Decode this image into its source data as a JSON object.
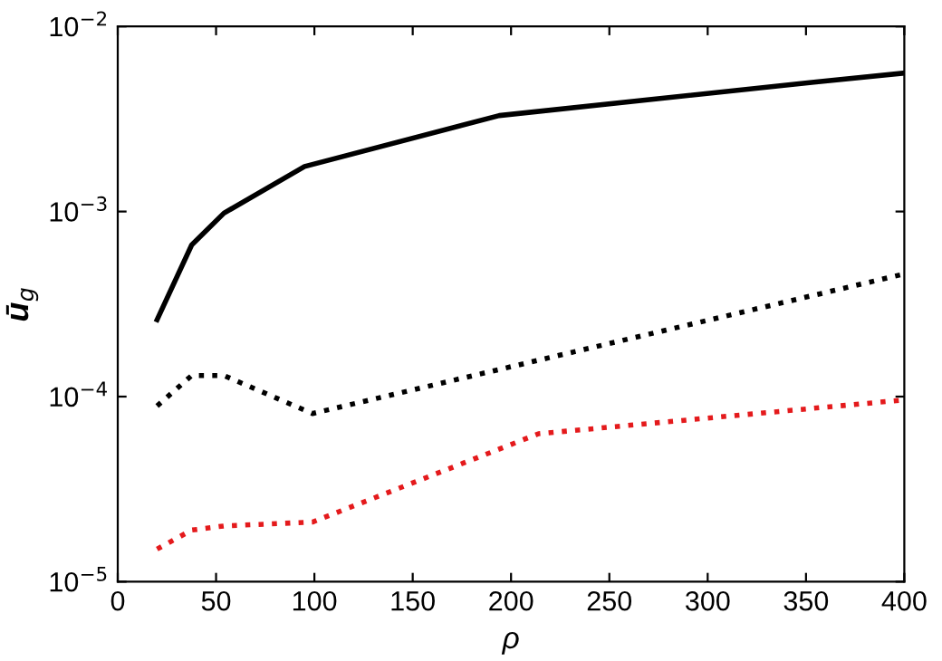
{
  "chart_data": {
    "type": "line",
    "xlabel": "ρ",
    "ylabel": "ū$_{g}$",
    "log": "y",
    "xlim": [
      0,
      400
    ],
    "xticks": [
      0,
      50,
      100,
      150,
      200,
      250,
      300,
      350,
      400
    ],
    "ylim": [
      1e-05,
      0.01
    ],
    "yticks": [
      {
        "value": 1e-05,
        "label": "10$^{−5}$"
      },
      {
        "value": 0.0001,
        "label": "10$^{−4}$"
      },
      {
        "value": 0.001,
        "label": "10$^{−3}$"
      },
      {
        "value": 0.01,
        "label": "10$^{−2}$"
      }
    ],
    "grid": false,
    "legend": false,
    "series": [
      {
        "color": "#000000",
        "line_style": "solid",
        "x": [
          20,
          37.6,
          54,
          95,
          194,
          354,
          400
        ],
        "values": [
          0.00026,
          0.00066,
          0.00098,
          0.00175,
          0.0033,
          0.005,
          0.0056
        ]
      },
      {
        "color": "#000000",
        "line_style": "dotted",
        "x": [
          20,
          37.6,
          54,
          99,
          400
        ],
        "values": [
          8.9e-05,
          0.00013,
          0.00013,
          8.1e-05,
          0.00046
        ]
      },
      {
        "color": "#e41a1c",
        "line_style": "dotted",
        "x": [
          20,
          37.6,
          54,
          99,
          214,
          400
        ],
        "values": [
          1.5e-05,
          1.9e-05,
          2e-05,
          2.1e-05,
          6.3e-05,
          9.6e-05
        ]
      }
    ]
  }
}
